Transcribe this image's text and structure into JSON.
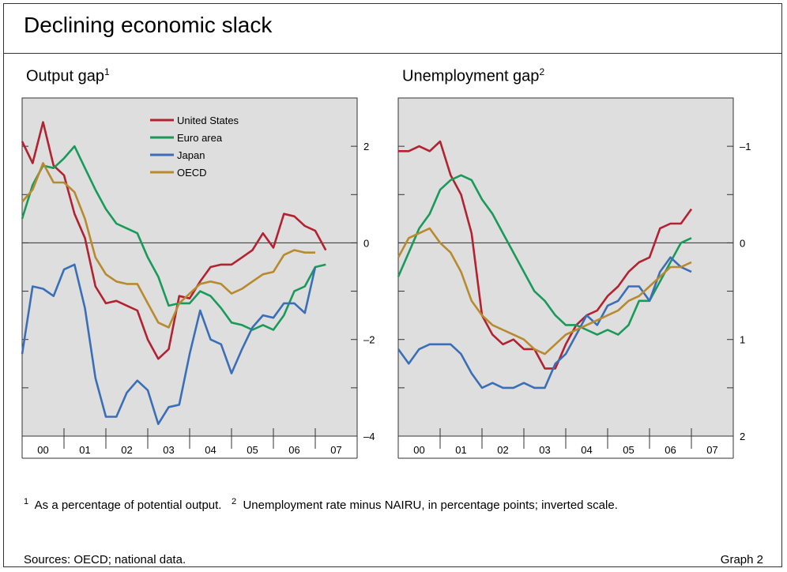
{
  "title": "Declining economic slack",
  "panels": {
    "left_title": "Output gap",
    "left_sup": "1",
    "right_title": "Unemployment gap",
    "right_sup": "2"
  },
  "footnotes": {
    "n1_sup": "1",
    "n1_text": "As a percentage of potential output.",
    "n2_sup": "2",
    "n2_text": "Unemployment rate minus NAIRU, in percentage points; inverted scale."
  },
  "sources": "Sources: OECD; national data.",
  "graph_label": "Graph 2",
  "colors": {
    "us": "#b22231",
    "euro": "#1a9a5a",
    "japan": "#3a6fb8",
    "oecd": "#b88a2e",
    "plot_bg": "#dedede"
  },
  "chart_data": [
    {
      "type": "line",
      "title": "Output gap",
      "x_tick_labels": [
        "00",
        "01",
        "02",
        "03",
        "04",
        "05",
        "06",
        "07"
      ],
      "x_range": [
        1999.75,
        2007.75
      ],
      "ylim": [
        -4,
        3
      ],
      "y_tick_labels": [
        "2",
        "0",
        "–2",
        "–4"
      ],
      "y_tick_values": [
        2,
        0,
        -2,
        -4
      ],
      "zero_line": 0,
      "legend": "top-left, inside",
      "series": [
        {
          "name": "United States",
          "color_key": "us",
          "x": [
            1999.75,
            2000.0,
            2000.25,
            2000.5,
            2000.75,
            2001.0,
            2001.25,
            2001.5,
            2001.75,
            2002.0,
            2002.25,
            2002.5,
            2002.75,
            2003.0,
            2003.25,
            2003.5,
            2003.75,
            2004.0,
            2004.25,
            2004.5,
            2004.75,
            2005.0,
            2005.25,
            2005.5,
            2005.75,
            2006.0,
            2006.25,
            2006.5,
            2006.75,
            2007.0
          ],
          "values": [
            2.1,
            1.65,
            2.5,
            1.6,
            1.4,
            0.6,
            0.1,
            -0.9,
            -1.25,
            -1.2,
            -1.3,
            -1.4,
            -2.0,
            -2.4,
            -2.2,
            -1.1,
            -1.15,
            -0.8,
            -0.5,
            -0.45,
            -0.45,
            -0.3,
            -0.15,
            0.2,
            -0.1,
            0.6,
            0.55,
            0.35,
            0.25,
            -0.15
          ]
        },
        {
          "name": "Euro area",
          "color_key": "euro",
          "x": [
            1999.75,
            2000.0,
            2000.25,
            2000.5,
            2000.75,
            2001.0,
            2001.25,
            2001.5,
            2001.75,
            2002.0,
            2002.25,
            2002.5,
            2002.75,
            2003.0,
            2003.25,
            2003.5,
            2003.75,
            2004.0,
            2004.25,
            2004.5,
            2004.75,
            2005.0,
            2005.25,
            2005.5,
            2005.75,
            2006.0,
            2006.25,
            2006.5,
            2006.75,
            2007.0
          ],
          "values": [
            0.5,
            1.2,
            1.6,
            1.55,
            1.75,
            2.0,
            1.55,
            1.1,
            0.7,
            0.4,
            0.3,
            0.2,
            -0.3,
            -0.7,
            -1.3,
            -1.25,
            -1.25,
            -1.0,
            -1.1,
            -1.35,
            -1.65,
            -1.7,
            -1.8,
            -1.7,
            -1.8,
            -1.5,
            -1.0,
            -0.9,
            -0.5,
            -0.45
          ]
        },
        {
          "name": "Japan",
          "color_key": "japan",
          "x": [
            1999.75,
            2000.0,
            2000.25,
            2000.5,
            2000.75,
            2001.0,
            2001.25,
            2001.5,
            2001.75,
            2002.0,
            2002.25,
            2002.5,
            2002.75,
            2003.0,
            2003.25,
            2003.5,
            2003.75,
            2004.0,
            2004.25,
            2004.5,
            2004.75,
            2005.0,
            2005.25,
            2005.5,
            2005.75,
            2006.0,
            2006.25,
            2006.5,
            2006.75
          ],
          "values": [
            -2.3,
            -0.9,
            -0.95,
            -1.1,
            -0.55,
            -0.45,
            -1.35,
            -2.8,
            -3.6,
            -3.6,
            -3.1,
            -2.85,
            -3.05,
            -3.75,
            -3.4,
            -3.35,
            -2.3,
            -1.4,
            -2.0,
            -2.1,
            -2.7,
            -2.2,
            -1.75,
            -1.5,
            -1.55,
            -1.25,
            -1.25,
            -1.45,
            -0.5
          ]
        },
        {
          "name": "OECD",
          "color_key": "oecd",
          "x": [
            1999.75,
            2000.0,
            2000.25,
            2000.5,
            2000.75,
            2001.0,
            2001.25,
            2001.5,
            2001.75,
            2002.0,
            2002.25,
            2002.5,
            2002.75,
            2003.0,
            2003.25,
            2003.5,
            2003.75,
            2004.0,
            2004.25,
            2004.5,
            2004.75,
            2005.0,
            2005.25,
            2005.5,
            2005.75,
            2006.0,
            2006.25,
            2006.5,
            2006.75
          ],
          "values": [
            0.85,
            1.1,
            1.65,
            1.25,
            1.25,
            1.05,
            0.5,
            -0.3,
            -0.65,
            -0.8,
            -0.85,
            -0.85,
            -1.25,
            -1.65,
            -1.75,
            -1.25,
            -1.05,
            -0.85,
            -0.8,
            -0.85,
            -1.05,
            -0.95,
            -0.8,
            -0.65,
            -0.6,
            -0.25,
            -0.15,
            -0.2,
            -0.2
          ]
        }
      ]
    },
    {
      "type": "line",
      "title": "Unemployment gap",
      "x_tick_labels": [
        "00",
        "01",
        "02",
        "03",
        "04",
        "05",
        "06",
        "07"
      ],
      "x_range": [
        1999.75,
        2007.75
      ],
      "ylim": [
        2,
        -1.5
      ],
      "inverted": true,
      "y_tick_labels": [
        "–1",
        "0",
        "1",
        "2"
      ],
      "y_tick_values": [
        -1,
        0,
        1,
        2
      ],
      "zero_line": 0,
      "series": [
        {
          "name": "United States",
          "color_key": "us",
          "x": [
            1999.75,
            2000.0,
            2000.25,
            2000.5,
            2000.75,
            2001.0,
            2001.25,
            2001.5,
            2001.75,
            2002.0,
            2002.25,
            2002.5,
            2002.75,
            2003.0,
            2003.25,
            2003.5,
            2003.75,
            2004.0,
            2004.25,
            2004.5,
            2004.75,
            2005.0,
            2005.25,
            2005.5,
            2005.75,
            2006.0,
            2006.25,
            2006.5,
            2006.75
          ],
          "values": [
            -0.95,
            -0.95,
            -1.0,
            -0.95,
            -1.05,
            -0.7,
            -0.5,
            -0.1,
            0.75,
            0.95,
            1.05,
            1.0,
            1.1,
            1.1,
            1.3,
            1.3,
            1.05,
            0.85,
            0.75,
            0.7,
            0.55,
            0.45,
            0.3,
            0.2,
            0.15,
            -0.15,
            -0.2,
            -0.2,
            -0.35
          ]
        },
        {
          "name": "Euro area",
          "color_key": "euro",
          "x": [
            1999.75,
            2000.0,
            2000.25,
            2000.5,
            2000.75,
            2001.0,
            2001.25,
            2001.5,
            2001.75,
            2002.0,
            2002.25,
            2002.5,
            2002.75,
            2003.0,
            2003.25,
            2003.5,
            2003.75,
            2004.0,
            2004.25,
            2004.5,
            2004.75,
            2005.0,
            2005.25,
            2005.5,
            2005.75,
            2006.0,
            2006.25,
            2006.5,
            2006.75
          ],
          "values": [
            0.35,
            0.1,
            -0.15,
            -0.3,
            -0.55,
            -0.65,
            -0.7,
            -0.65,
            -0.45,
            -0.3,
            -0.1,
            0.1,
            0.3,
            0.5,
            0.6,
            0.75,
            0.85,
            0.85,
            0.9,
            0.95,
            0.9,
            0.95,
            0.85,
            0.6,
            0.6,
            0.4,
            0.2,
            0.0,
            -0.05
          ]
        },
        {
          "name": "Japan",
          "color_key": "japan",
          "x": [
            1999.75,
            2000.0,
            2000.25,
            2000.5,
            2000.75,
            2001.0,
            2001.25,
            2001.5,
            2001.75,
            2002.0,
            2002.25,
            2002.5,
            2002.75,
            2003.0,
            2003.25,
            2003.5,
            2003.75,
            2004.0,
            2004.25,
            2004.5,
            2004.75,
            2005.0,
            2005.25,
            2005.5,
            2005.75,
            2006.0,
            2006.25,
            2006.5,
            2006.75
          ],
          "values": [
            1.1,
            1.25,
            1.1,
            1.05,
            1.05,
            1.05,
            1.15,
            1.35,
            1.5,
            1.45,
            1.5,
            1.5,
            1.45,
            1.5,
            1.5,
            1.25,
            1.15,
            0.95,
            0.75,
            0.85,
            0.65,
            0.6,
            0.45,
            0.45,
            0.6,
            0.3,
            0.15,
            0.25,
            0.3
          ]
        },
        {
          "name": "OECD",
          "color_key": "oecd",
          "x": [
            1999.75,
            2000.0,
            2000.25,
            2000.5,
            2000.75,
            2001.0,
            2001.25,
            2001.5,
            2001.75,
            2002.0,
            2002.25,
            2002.5,
            2002.75,
            2003.0,
            2003.25,
            2003.5,
            2003.75,
            2004.0,
            2004.25,
            2004.5,
            2004.75,
            2005.0,
            2005.25,
            2005.5,
            2005.75,
            2006.0,
            2006.25,
            2006.5,
            2006.75
          ],
          "values": [
            0.15,
            -0.05,
            -0.1,
            -0.15,
            0.0,
            0.1,
            0.3,
            0.6,
            0.75,
            0.85,
            0.9,
            0.95,
            1.0,
            1.1,
            1.15,
            1.05,
            0.95,
            0.9,
            0.85,
            0.8,
            0.75,
            0.7,
            0.6,
            0.55,
            0.45,
            0.35,
            0.25,
            0.25,
            0.2
          ]
        }
      ]
    }
  ]
}
